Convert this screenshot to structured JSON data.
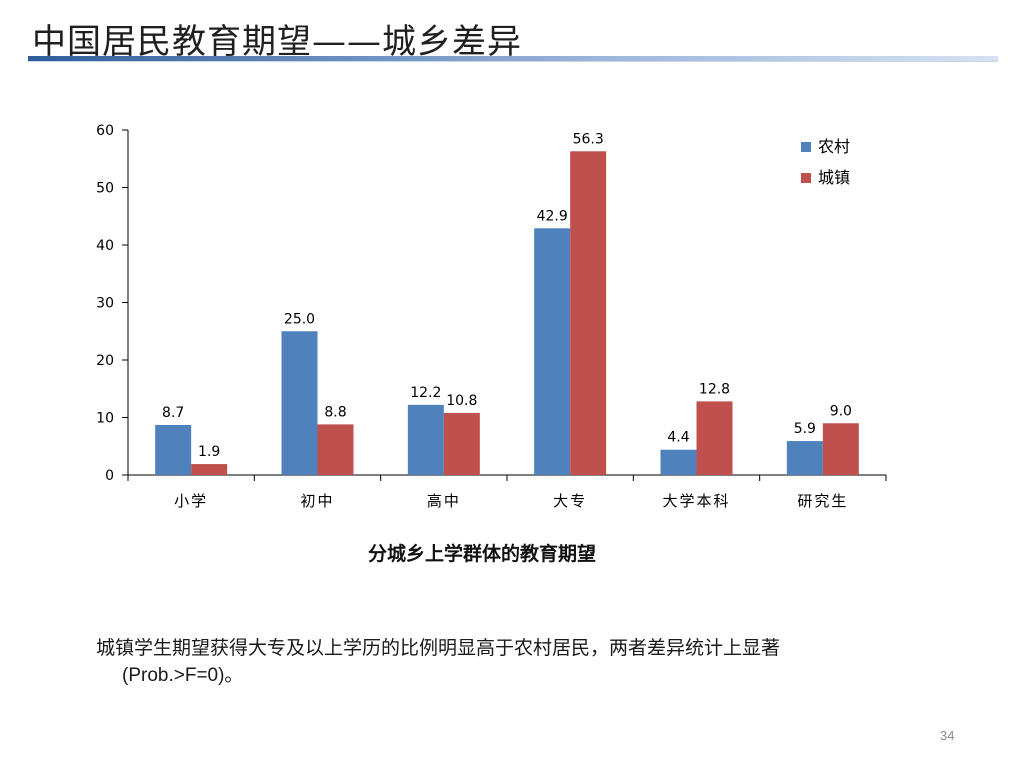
{
  "slide": {
    "title": "中国居民教育期望——城乡差异",
    "bullet_line1": "城镇学生期望获得大专及以上学历的比例明显高于农村居民，两者差异统计上显著",
    "bullet_line2": "(Prob.>F=0)。",
    "page_number": "34"
  },
  "chart_data": {
    "type": "bar",
    "title": "",
    "xlabel": "分城乡上学群体的教育期望",
    "ylabel": "",
    "categories": [
      "小学",
      "初中",
      "高中",
      "大专",
      "大学本科",
      "研究生"
    ],
    "series": [
      {
        "name": "农村",
        "values": [
          8.7,
          25.0,
          12.2,
          42.9,
          4.4,
          5.9
        ],
        "labels": [
          "8.7",
          "25.0",
          "12.2",
          "42.9",
          "4.4",
          "5.9"
        ],
        "color": "#4f81bd"
      },
      {
        "name": "城镇",
        "values": [
          1.9,
          8.8,
          10.8,
          56.3,
          12.8,
          9.0
        ],
        "labels": [
          "1.9",
          "8.8",
          "10.8",
          "56.3",
          "12.8",
          "9.0"
        ],
        "color": "#c0504d"
      }
    ],
    "ylim": [
      0,
      60
    ],
    "yticks": [
      "0",
      "10",
      "20",
      "30",
      "40",
      "50",
      "60"
    ],
    "grid": false,
    "legend": "top-right"
  }
}
